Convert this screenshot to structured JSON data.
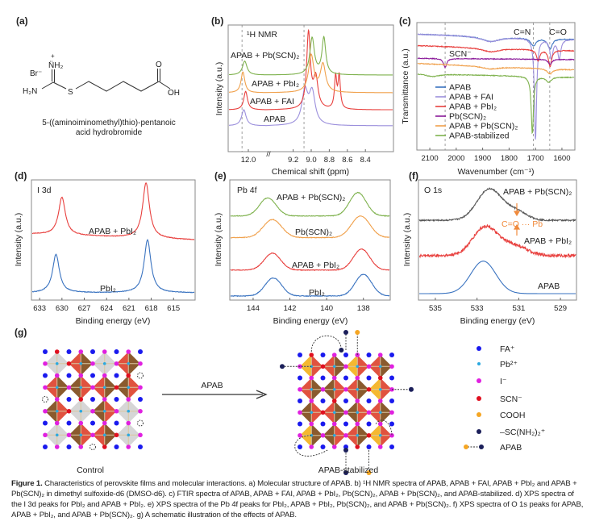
{
  "panel_labels": {
    "a": "(a)",
    "b": "(b)",
    "c": "(c)",
    "d": "(d)",
    "e": "(e)",
    "f": "(f)",
    "g": "(g)"
  },
  "panel_a": {
    "counter_ion": "Br⁻",
    "imine": "N̈H₂",
    "plus": "+",
    "amine": "H₂N",
    "sulfur": "S",
    "oxygen": "O",
    "hydroxyl": "OH",
    "name_line1": "5-((aminoiminomethyl)thio)-pentanoic",
    "name_line2": "acid hydrobromide"
  },
  "chart_data": [
    {
      "id": "b",
      "type": "line",
      "title": "¹H NMR",
      "xlabel": "Chemical shift (ppm)",
      "ylabel": "Intensity (a.u.)",
      "x_segments": [
        [
          12.22,
          11.78
        ],
        [
          9.4,
          8.09
        ]
      ],
      "axis_break": "//",
      "ylim": [
        0,
        100
      ],
      "xticks": [
        12.0,
        9.2,
        9.0,
        8.8,
        8.6,
        8.4
      ],
      "xtick_labels": [
        "12.0",
        "9.2",
        "9.0",
        "8.8",
        "8.6",
        "8.4"
      ],
      "reference_lines": [
        12.07,
        9.08
      ],
      "series": [
        {
          "name": "APAB",
          "color": "#9b8fdc",
          "baseline": 20.4,
          "peaks": [
            {
              "x": 12.05,
              "h": 12.7,
              "w": 0.03
            },
            {
              "x": 9.07,
              "h": 26,
              "w": 0.04
            },
            {
              "x": 8.99,
              "h": 25,
              "w": 0.04
            }
          ]
        },
        {
          "name": "APAB + FAI",
          "color": "#e8403e",
          "baseline": 33,
          "peaks": [
            {
              "x": 12.03,
              "h": 14.6,
              "w": 0.025
            },
            {
              "x": 9.03,
              "h": 60,
              "w": 0.025
            },
            {
              "x": 8.95,
              "h": 24,
              "w": 0.03
            },
            {
              "x": 8.73,
              "h": 25,
              "w": 0.015
            },
            {
              "x": 8.69,
              "h": 26,
              "w": 0.015
            }
          ]
        },
        {
          "name": "APAB + PbI₂",
          "color": "#f0a04b",
          "baseline": 46.5,
          "peaks": [
            {
              "x": 12.06,
              "h": 16.5,
              "w": 0.025
            },
            {
              "x": 9.0,
              "h": 29,
              "w": 0.035
            },
            {
              "x": 8.87,
              "h": 22,
              "w": 0.035
            }
          ]
        },
        {
          "name": "APAB + Pb(SCN)₂",
          "color": "#7fb24e",
          "baseline": 60.5,
          "peaks": [
            {
              "x": 12.04,
              "h": 11,
              "w": 0.03
            },
            {
              "x": 8.99,
              "h": 29,
              "w": 0.03
            },
            {
              "x": 8.86,
              "h": 29,
              "w": 0.025
            }
          ]
        }
      ]
    },
    {
      "id": "c",
      "type": "line",
      "xlabel": "Wavenumber (cm⁻¹)",
      "ylabel": "Transmittance (a.u.)",
      "xlim": [
        2149,
        1551
      ],
      "ylim": [
        0,
        100
      ],
      "xticks": [
        2100,
        2000,
        1900,
        1800,
        1700,
        1600
      ],
      "xtick_labels": [
        "2100",
        "2000",
        "1900",
        "1800",
        "1700",
        "1600"
      ],
      "reference_lines": [
        2042,
        1708,
        1646
      ],
      "annotations": [
        "SCN⁻",
        "C=N",
        "C=O"
      ],
      "legend": "bottom-left",
      "series": [
        {
          "name": "APAB",
          "color": "#3a73c0",
          "start": 91,
          "end": 87,
          "dips": [
            {
              "x": 1870,
              "d": 4,
              "w": 40
            },
            {
              "x": 1708,
              "d": 6,
              "w": 12
            },
            {
              "x": 1645,
              "d": 8,
              "w": 10
            }
          ]
        },
        {
          "name": "APAB + FAI",
          "color": "#9b8fdc",
          "start": 91,
          "end": 87,
          "dips": [
            {
              "x": 1870,
              "d": 4,
              "w": 40
            },
            {
              "x": 1700,
              "d": 80,
              "w": 5
            },
            {
              "x": 1640,
              "d": 15,
              "w": 7
            },
            {
              "x": 1610,
              "d": 15,
              "w": 7
            }
          ]
        },
        {
          "name": "APAB + PbI₂",
          "color": "#e8403e",
          "start": 82,
          "end": 78,
          "dips": [
            {
              "x": 1870,
              "d": 3,
              "w": 40
            },
            {
              "x": 1690,
              "d": 9,
              "w": 7
            },
            {
              "x": 1645,
              "d": 13,
              "w": 7
            }
          ]
        },
        {
          "name": "Pb(SCN)₂",
          "color": "#8b1a9a",
          "start": 72,
          "end": 71,
          "dips": [
            {
              "x": 2042,
              "d": 7,
              "w": 7
            },
            {
              "x": 1645,
              "d": 4,
              "w": 8
            }
          ]
        },
        {
          "name": "APAB + Pb(SCN)₂",
          "color": "#f0a04b",
          "start": 68,
          "end": 63,
          "dips": [
            {
              "x": 1870,
              "d": 2,
              "w": 40
            },
            {
              "x": 1645,
              "d": 4,
              "w": 12
            }
          ]
        },
        {
          "name": "APAB-stabilized",
          "color": "#7fb24e",
          "start": 60,
          "end": 57,
          "dips": [
            {
              "x": 2090,
              "d": 2,
              "w": 30
            },
            {
              "x": 1712,
              "d": 45,
              "w": 5
            },
            {
              "x": 1650,
              "d": 4,
              "w": 12
            }
          ]
        }
      ]
    },
    {
      "id": "d",
      "type": "line",
      "title": "I 3d",
      "xlabel": "Binding energy (eV)",
      "ylabel": "Intensity (a.u.)",
      "xlim": [
        634.1,
        612.1
      ],
      "ylim": [
        0,
        100
      ],
      "xticks": [
        633,
        630,
        627,
        624,
        621,
        618,
        615
      ],
      "xtick_labels": [
        "633",
        "630",
        "627",
        "624",
        "621",
        "618",
        "615"
      ],
      "series": [
        {
          "name": "PbI₂",
          "color": "#3a73c0",
          "start": 6,
          "end": 6,
          "peaks": [
            {
              "x": 630.8,
              "h": 32,
              "w": 0.55
            },
            {
              "x": 618.5,
              "h": 44,
              "w": 0.55
            }
          ]
        },
        {
          "name": "APAB + PbI₂",
          "color": "#e8403e",
          "start": 55,
          "end": 50,
          "peaks": [
            {
              "x": 630.0,
              "h": 31.5,
              "w": 0.55
            },
            {
              "x": 618.7,
              "h": 46,
              "w": 0.55
            }
          ]
        }
      ]
    },
    {
      "id": "e",
      "type": "line",
      "title": "Pb 4f",
      "xlabel": "Binding energy (eV)",
      "ylabel": "Intensity (a.u.)",
      "xlim": [
        145.27,
        136.54
      ],
      "ylim": [
        0,
        100
      ],
      "xticks": [
        144,
        142,
        140,
        138
      ],
      "xtick_labels": [
        "144",
        "142",
        "140",
        "138"
      ],
      "series": [
        {
          "name": "PbI₂",
          "color": "#3a73c0",
          "start": 3.4,
          "end": 3.4,
          "peaks": [
            {
              "x": 142.9,
              "h": 15,
              "w": 0.45
            },
            {
              "x": 138.0,
              "h": 18,
              "w": 0.45
            }
          ]
        },
        {
          "name": "APAB + PbI₂",
          "color": "#e8403e",
          "start": 25,
          "end": 25,
          "peaks": [
            {
              "x": 142.95,
              "h": 14,
              "w": 0.45
            },
            {
              "x": 138.1,
              "h": 17.4,
              "w": 0.45
            }
          ]
        },
        {
          "name": "Pb(SCN)₂",
          "color": "#f0a04b",
          "start": 52,
          "end": 52,
          "peaks": [
            {
              "x": 142.95,
              "h": 15,
              "w": 0.5
            },
            {
              "x": 138.15,
              "h": 18,
              "w": 0.5
            }
          ]
        },
        {
          "name": "APAB + Pb(SCN)₂",
          "color": "#7fb24e",
          "start": 70,
          "end": 70,
          "peaks": [
            {
              "x": 143.2,
              "h": 15,
              "w": 0.45
            },
            {
              "x": 138.3,
              "h": 19.5,
              "w": 0.45
            }
          ]
        }
      ]
    },
    {
      "id": "f",
      "type": "line",
      "title": "O 1s",
      "xlabel": "Binding energy (eV)",
      "ylabel": "Intensity (a.u.)",
      "xlim": [
        535.81,
        528.23
      ],
      "ylim": [
        0,
        100
      ],
      "xticks": [
        535,
        533,
        531,
        529
      ],
      "xtick_labels": [
        "535",
        "533",
        "531",
        "529"
      ],
      "annotation": "C=O ··· Pb",
      "annotation_color": "#f08a3c",
      "series": [
        {
          "name": "APAB",
          "color": "#3a73c0",
          "start": 5.4,
          "end": 5.4,
          "noise": 0,
          "peaks": [
            {
              "x": 532.7,
              "h": 27,
              "w": 0.6
            }
          ]
        },
        {
          "name": "APAB + PbI₂",
          "color": "#e8403e",
          "start": 37,
          "end": 37,
          "noise": 1.2,
          "peaks": [
            {
              "x": 532.6,
              "h": 24,
              "w": 0.6
            },
            {
              "x": 531.2,
              "h": 8,
              "w": 0.6
            }
          ]
        },
        {
          "name": "APAB + Pb(SCN)₂",
          "color": "#555555",
          "start": 66.4,
          "end": 66.4,
          "noise": 0.6,
          "peaks": [
            {
              "x": 532.4,
              "h": 26,
              "w": 0.6
            },
            {
              "x": 531.1,
              "h": 7,
              "w": 0.5
            }
          ]
        }
      ]
    }
  ],
  "panel_g": {
    "control_label": "Control",
    "stabilized_label": "APAB-stabilized",
    "arrow_label": "APAB",
    "colors": {
      "fa": "#1a1aee",
      "pb": "#2aa8e0",
      "iodide": "#e020e0",
      "scn": "#e01020",
      "cooh": "#f5a623",
      "sc": "#1b1f5a",
      "oct_brown": "#8a5a2e",
      "oct_red": "#e0523f",
      "oct_gray": "#d6d6d6",
      "oct_orange": "#f5b830"
    },
    "legend": [
      {
        "key": "fa",
        "label": "FA⁺"
      },
      {
        "key": "pb",
        "label": "Pb²⁺"
      },
      {
        "key": "iodide",
        "label": "I⁻"
      },
      {
        "key": "scn",
        "label": "SCN⁻"
      },
      {
        "key": "cooh",
        "label": "COOH"
      },
      {
        "key": "sc",
        "label": "–SC(NH₂)₂⁺"
      },
      {
        "key": "apab",
        "label": "APAB"
      }
    ]
  },
  "caption": {
    "figure_label": "Figure 1.",
    "text": "Characteristics of perovskite films and molecular interactions. a) Molecular structure of APAB. b) ¹H NMR spectra of APAB, APAB + FAI, APAB + PbI₂ and APAB + Pb(SCN)₂ in dimethyl sulfoxide-d6 (DMSO-d6). c) FTIR spectra of APAB, APAB + FAI, APAB + PbI₂, Pb(SCN)₂, APAB + Pb(SCN)₂, and APAB-stabilized. d) XPS spectra of the I 3d peaks for PbI₂ and APAB + PbI₂. e) XPS spectra of the Pb 4f peaks for PbI₂, APAB + PbI₂, Pb(SCN)₂, and APAB + Pb(SCN)₂. f) XPS spectra of O 1s peaks for APAB, APAB + PbI₂, and APAB + Pb(SCN)₂. g) A schematic illustration of the effects of APAB."
  }
}
